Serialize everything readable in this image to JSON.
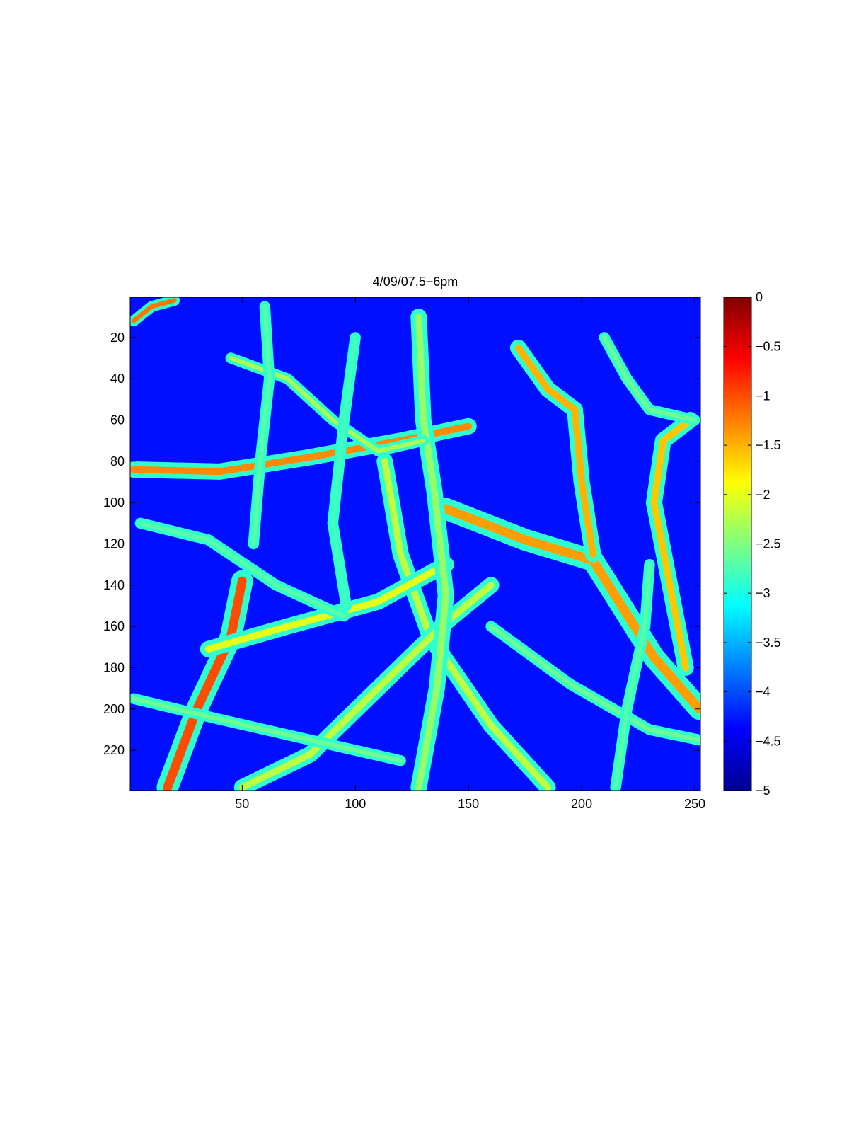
{
  "chart_data": {
    "type": "heatmap",
    "title": "4/09/07,5−6pm",
    "xlabel": "",
    "ylabel": "",
    "xlim": [
      0.5,
      252.5
    ],
    "ylim": [
      0.5,
      239.5
    ],
    "y_axis_direction": "reversed",
    "x_ticks": [
      50,
      100,
      150,
      200,
      250
    ],
    "x_tick_labels": [
      "50",
      "100",
      "150",
      "200",
      "250"
    ],
    "y_ticks": [
      20,
      40,
      60,
      80,
      100,
      120,
      140,
      160,
      180,
      200,
      220
    ],
    "y_tick_labels": [
      "20",
      "40",
      "60",
      "80",
      "100",
      "120",
      "140",
      "160",
      "180",
      "200",
      "220"
    ],
    "colormap": "jet",
    "clim": [
      -5,
      0
    ],
    "colorbar_ticks": [
      0,
      -0.5,
      -1,
      -1.5,
      -2,
      -2.5,
      -3,
      -3.5,
      -4,
      -4.5,
      -5
    ],
    "colorbar_tick_labels": [
      "0",
      "−0.5",
      "−1",
      "−1.5",
      "−2",
      "−2.5",
      "−3",
      "−3.5",
      "−4",
      "−4.5",
      "−5"
    ],
    "background_value": -4.3,
    "branches": [
      {
        "points": [
          [
            2,
            84
          ],
          [
            40,
            85
          ],
          [
            80,
            78
          ],
          [
            120,
            70
          ],
          [
            150,
            63
          ]
        ],
        "value": -1.3,
        "width": 3
      },
      {
        "points": [
          [
            17,
            238
          ],
          [
            30,
            200
          ],
          [
            45,
            165
          ],
          [
            50,
            138
          ]
        ],
        "value": -1.0,
        "width": 4
      },
      {
        "points": [
          [
            140,
            103
          ],
          [
            175,
            118
          ],
          [
            205,
            128
          ],
          [
            232,
            175
          ],
          [
            252,
            200
          ]
        ],
        "value": -1.4,
        "width": 4
      },
      {
        "points": [
          [
            172,
            25
          ],
          [
            185,
            45
          ],
          [
            197,
            55
          ],
          [
            200,
            90
          ],
          [
            205,
            125
          ]
        ],
        "value": -1.5,
        "width": 3
      },
      {
        "points": [
          [
            113,
            80
          ],
          [
            120,
            125
          ],
          [
            133,
            165
          ],
          [
            160,
            208
          ],
          [
            185,
            238
          ]
        ],
        "value": -2.2,
        "width": 3
      },
      {
        "points": [
          [
            50,
            238
          ],
          [
            80,
            222
          ],
          [
            110,
            190
          ],
          [
            140,
            158
          ],
          [
            160,
            140
          ]
        ],
        "value": -2.2,
        "width": 3
      },
      {
        "points": [
          [
            35,
            171
          ],
          [
            70,
            160
          ],
          [
            110,
            148
          ],
          [
            140,
            130
          ]
        ],
        "value": -2.0,
        "width": 3
      },
      {
        "points": [
          [
            128,
            10
          ],
          [
            130,
            60
          ],
          [
            135,
            95
          ],
          [
            140,
            145
          ],
          [
            136,
            190
          ],
          [
            128,
            238
          ]
        ],
        "value": -2.4,
        "width": 3
      },
      {
        "points": [
          [
            248,
            60
          ],
          [
            236,
            70
          ],
          [
            232,
            100
          ],
          [
            239,
            140
          ],
          [
            246,
            180
          ]
        ],
        "value": -1.6,
        "width": 3
      },
      {
        "points": [
          [
            45,
            30
          ],
          [
            70,
            40
          ],
          [
            90,
            60
          ],
          [
            110,
            75
          ],
          [
            130,
            70
          ]
        ],
        "value": -2.3,
        "width": 2
      },
      {
        "points": [
          [
            2,
            195
          ],
          [
            40,
            205
          ],
          [
            80,
            215
          ],
          [
            120,
            225
          ]
        ],
        "value": -2.6,
        "width": 2
      },
      {
        "points": [
          [
            160,
            160
          ],
          [
            195,
            188
          ],
          [
            230,
            210
          ],
          [
            252,
            215
          ]
        ],
        "value": -2.6,
        "width": 2
      },
      {
        "points": [
          [
            5,
            110
          ],
          [
            35,
            118
          ],
          [
            65,
            140
          ],
          [
            95,
            155
          ]
        ],
        "value": -2.7,
        "width": 2
      },
      {
        "points": [
          [
            210,
            20
          ],
          [
            220,
            40
          ],
          [
            230,
            55
          ],
          [
            250,
            60
          ]
        ],
        "value": -2.6,
        "width": 2
      },
      {
        "points": [
          [
            60,
            5
          ],
          [
            62,
            40
          ],
          [
            58,
            80
          ],
          [
            55,
            120
          ]
        ],
        "value": -2.7,
        "width": 2
      },
      {
        "points": [
          [
            230,
            130
          ],
          [
            228,
            160
          ],
          [
            220,
            200
          ],
          [
            215,
            238
          ]
        ],
        "value": -2.7,
        "width": 2
      },
      {
        "points": [
          [
            100,
            20
          ],
          [
            95,
            60
          ],
          [
            90,
            110
          ],
          [
            96,
            150
          ]
        ],
        "value": -2.8,
        "width": 2
      },
      {
        "points": [
          [
            2,
            12
          ],
          [
            10,
            5
          ],
          [
            20,
            2
          ]
        ],
        "value": -1.2,
        "width": 2
      }
    ]
  }
}
